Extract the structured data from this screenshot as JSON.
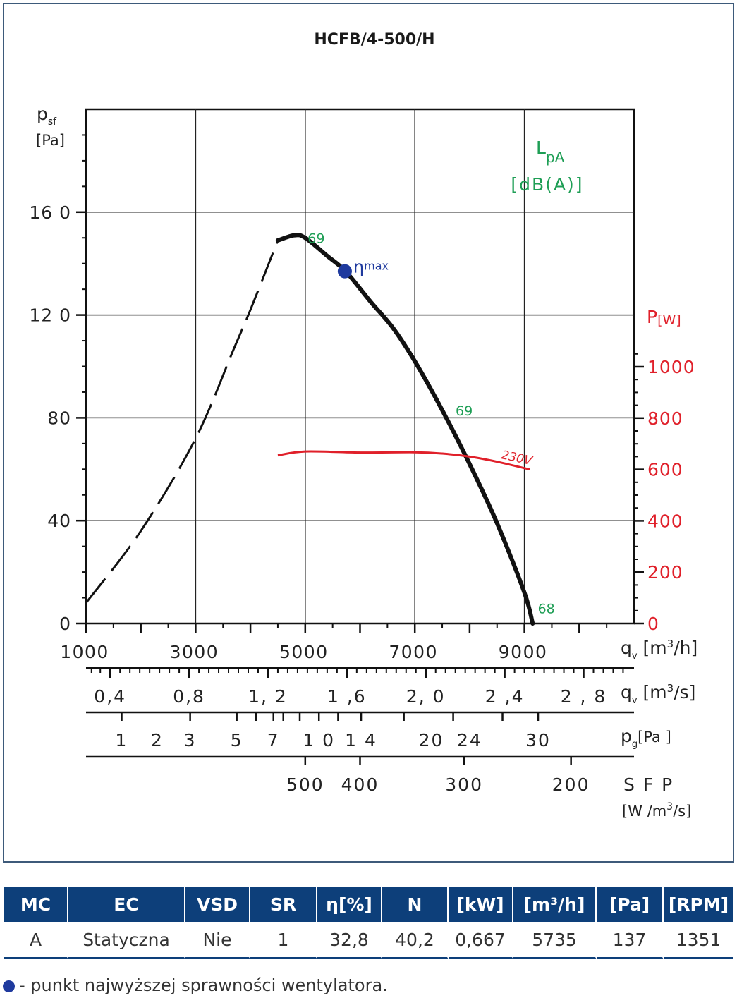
{
  "chart_data": {
    "type": "line",
    "title": "HCFB/4-500/H",
    "ylabel_main": "p",
    "ylabel_sub": "sf",
    "yunit": "[Pa]",
    "y_tick_labels": [
      "0",
      "40",
      "80",
      "12 0",
      "16 0"
    ],
    "y_ticks": [
      0,
      40,
      80,
      120,
      160
    ],
    "ylim": [
      0,
      200
    ],
    "x_tick_labels": [
      "1000",
      "3000",
      "5000",
      "7000",
      "9000"
    ],
    "x_ticks": [
      1000,
      3000,
      5000,
      7000,
      9000
    ],
    "xlim": [
      1000,
      11000
    ],
    "xlabel": "q",
    "xlabel_sub": "v",
    "xunit": "[m",
    "xunit_sup": "3",
    "xunit_end": "/h]",
    "grid": true,
    "sound_label": "L",
    "sound_label_sub": "pA",
    "sound_unit": "[dB(A)]",
    "power_label": "P",
    "power_unit": "[W]",
    "power_tick_labels": [
      "0",
      "200",
      "400",
      "600",
      "800",
      "1000"
    ],
    "power_ticks": [
      0,
      200,
      400,
      600,
      800,
      1000
    ],
    "pressure_curve": {
      "stall_dashed": [
        [
          1000,
          8
        ],
        [
          2000,
          36
        ],
        [
          3000,
          72
        ],
        [
          3700,
          107
        ],
        [
          4000,
          122
        ],
        [
          4500,
          149
        ]
      ],
      "solid": [
        [
          4500,
          149
        ],
        [
          4800,
          151
        ],
        [
          5000,
          150
        ],
        [
          5400,
          143
        ],
        [
          5735,
          137
        ],
        [
          6200,
          125
        ],
        [
          6600,
          115
        ],
        [
          7000,
          102
        ],
        [
          7500,
          83
        ],
        [
          8000,
          62
        ],
        [
          8500,
          39
        ],
        [
          9000,
          12
        ],
        [
          9150,
          0
        ]
      ]
    },
    "power_series": {
      "name": "230V",
      "values": [
        [
          4500,
          655
        ],
        [
          5000,
          670
        ],
        [
          6000,
          666
        ],
        [
          7000,
          667
        ],
        [
          7500,
          662
        ],
        [
          8000,
          650
        ],
        [
          8500,
          630
        ],
        [
          9100,
          600
        ]
      ]
    },
    "sound_labels": [
      {
        "text": "69",
        "x": 5200,
        "y": 148
      },
      {
        "text": "69",
        "x": 7900,
        "y": 81
      },
      {
        "text": "68",
        "x": 9400,
        "y": 4
      }
    ],
    "efficiency_point": {
      "label": "η",
      "label_sub": "max",
      "x": 5735,
      "y": 137
    },
    "secondary_axes": [
      {
        "id": "qv_ms",
        "ticks": [
          [
            "0,4",
            1440
          ],
          [
            "0,8",
            2880
          ],
          [
            "1, 2",
            4320
          ],
          [
            "1 ,6",
            5760
          ],
          [
            "2, 0",
            7200
          ],
          [
            "2 ,4",
            8640
          ],
          [
            "2 , 8",
            10080
          ]
        ],
        "minor_ticks": [
          1100,
          1260,
          1620,
          1800,
          1980,
          2160,
          2340,
          2520,
          2700,
          3060,
          3240,
          3420,
          3600,
          3780,
          3960,
          4140,
          4500,
          4680,
          4860,
          5040,
          5220,
          5400,
          5580,
          5940,
          6120,
          6300,
          6480,
          6660,
          6840,
          7020,
          7380,
          7560,
          7740,
          7920,
          8100,
          8280,
          8460,
          8820,
          9000,
          9180,
          9360,
          9540,
          9720,
          9900,
          10260,
          10440,
          10620,
          10800
        ],
        "label": "q",
        "label_sub": "v",
        "unit": "[m",
        "unit_sup": "3",
        "unit_end": "/s]"
      },
      {
        "id": "pg",
        "ticks": [
          [
            "1",
            1650
          ],
          [
            "2",
            2300
          ],
          [
            "3",
            2900
          ],
          [
            "5",
            3750
          ],
          [
            "7",
            4420
          ],
          [
            "1 0",
            5250
          ],
          [
            "1 4",
            6020
          ],
          [
            "20",
            7300
          ],
          [
            "24",
            8000
          ],
          [
            "30",
            9250
          ]
        ],
        "minor_ticks": [
          1650,
          2900,
          3750,
          4100,
          4420,
          4600,
          4900,
          5250,
          5600,
          6020,
          6800,
          7700,
          8600,
          9250
        ],
        "label": "p",
        "label_sub": "g",
        "unit": "[Pa ]"
      },
      {
        "id": "sfp",
        "ticks": [
          [
            "500",
            5000
          ],
          [
            "400",
            6000
          ],
          [
            "300",
            7900
          ],
          [
            "200",
            9850
          ]
        ],
        "minor_ticks": [
          5000,
          6000,
          7900,
          9850
        ],
        "label": "S F P",
        "unit_line2": "[W /m",
        "unit_line2_sup": "3",
        "unit_line2_end": "/s]"
      }
    ]
  },
  "table": {
    "headers": [
      "MC",
      "EC",
      "VSD",
      "SR",
      "η[%]",
      "N",
      "[kW]",
      "[m³/h]",
      "[Pa]",
      "[RPM]"
    ],
    "row": [
      "A",
      "Statyczna",
      "Nie",
      "1",
      "32,8",
      "40,2",
      "0,667",
      "5735",
      "137",
      "1351"
    ]
  },
  "footnote": "- punkt najwyższej sprawności wentylatora.",
  "colors": {
    "frame": "#3d5a7a",
    "curve": "#111111",
    "power": "#e0202a",
    "sound": "#1e9e55",
    "efficiency_point": "#1f3a9e",
    "table_header": "#0d3f7a"
  }
}
